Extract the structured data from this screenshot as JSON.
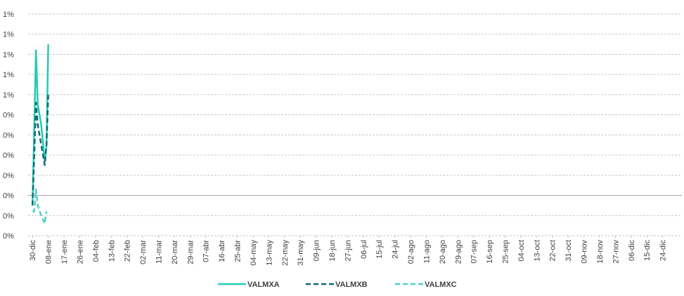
{
  "chart_data": {
    "type": "line",
    "xlim": [
      -2.5,
      371
    ],
    "xticks": [
      {
        "value": 0,
        "label": "30-dic"
      },
      {
        "value": 9,
        "label": "08-ene"
      },
      {
        "value": 18,
        "label": "17-ene"
      },
      {
        "value": 27,
        "label": "26-ene"
      },
      {
        "value": 36,
        "label": "04-feb"
      },
      {
        "value": 45,
        "label": "13-feb"
      },
      {
        "value": 54,
        "label": "22-feb"
      },
      {
        "value": 63,
        "label": "02-mar"
      },
      {
        "value": 72,
        "label": "11-mar"
      },
      {
        "value": 81,
        "label": "20-mar"
      },
      {
        "value": 90,
        "label": "29-mar"
      },
      {
        "value": 99,
        "label": "07-abr"
      },
      {
        "value": 108,
        "label": "16-abr"
      },
      {
        "value": 117,
        "label": "25-abr"
      },
      {
        "value": 126,
        "label": "04-may"
      },
      {
        "value": 135,
        "label": "13-may"
      },
      {
        "value": 144,
        "label": "22-may"
      },
      {
        "value": 153,
        "label": "31-may"
      },
      {
        "value": 162,
        "label": "09-jun"
      },
      {
        "value": 171,
        "label": "18-jun"
      },
      {
        "value": 180,
        "label": "27-jun"
      },
      {
        "value": 189,
        "label": "06-jul"
      },
      {
        "value": 198,
        "label": "15-jul"
      },
      {
        "value": 207,
        "label": "24-jul"
      },
      {
        "value": 216,
        "label": "02-ago"
      },
      {
        "value": 225,
        "label": "11-ago"
      },
      {
        "value": 234,
        "label": "20-ago"
      },
      {
        "value": 243,
        "label": "29-ago"
      },
      {
        "value": 252,
        "label": "07-sep"
      },
      {
        "value": 261,
        "label": "16-sep"
      },
      {
        "value": 270,
        "label": "25-sep"
      },
      {
        "value": 279,
        "label": "04-oct"
      },
      {
        "value": 288,
        "label": "13-oct"
      },
      {
        "value": 297,
        "label": "22-oct"
      },
      {
        "value": 306,
        "label": "31-oct"
      },
      {
        "value": 315,
        "label": "09-nov"
      },
      {
        "value": 324,
        "label": "18-nov"
      },
      {
        "value": 333,
        "label": "27-nov"
      },
      {
        "value": 342,
        "label": "06-dic"
      },
      {
        "value": 351,
        "label": "15-dic"
      },
      {
        "value": 360,
        "label": "24-dic"
      }
    ],
    "ylim": [
      -0.2,
      0.9
    ],
    "yticks": [
      {
        "value": -0.2,
        "label": "0%"
      },
      {
        "value": -0.1,
        "label": "0%"
      },
      {
        "value": 0,
        "label": "0%"
      },
      {
        "value": 0.1,
        "label": "0%"
      },
      {
        "value": 0.2,
        "label": "0%"
      },
      {
        "value": 0.3,
        "label": "0%"
      },
      {
        "value": 0.4,
        "label": "0%"
      },
      {
        "value": 0.5,
        "label": "1%"
      },
      {
        "value": 0.6,
        "label": "1%"
      },
      {
        "value": 0.7,
        "label": "1%"
      },
      {
        "value": 0.8,
        "label": "1%"
      },
      {
        "value": 0.9,
        "label": "1%"
      }
    ],
    "grid": true,
    "series": [
      {
        "name": "VALMXA",
        "color": "#22cdb0",
        "dash": "solid",
        "x": [
          0,
          2,
          3,
          5,
          7,
          8,
          9
        ],
        "values": [
          -0.05,
          0.72,
          0.45,
          0.35,
          0.17,
          0.25,
          0.75
        ]
      },
      {
        "name": "VALMXB",
        "color": "#0e6b77",
        "dash": "dashed",
        "x": [
          0,
          1,
          2,
          3,
          4,
          7,
          8,
          9
        ],
        "values": [
          -0.05,
          0.2,
          0.46,
          0.35,
          0.3,
          0.15,
          0.25,
          0.5
        ]
      },
      {
        "name": "VALMXC",
        "color": "#4fd1c8",
        "dash": "dashed",
        "x": [
          0,
          1,
          2,
          3,
          5,
          7,
          8
        ],
        "values": [
          -0.08,
          -0.08,
          0.03,
          -0.05,
          -0.1,
          -0.14,
          -0.08
        ]
      }
    ]
  }
}
